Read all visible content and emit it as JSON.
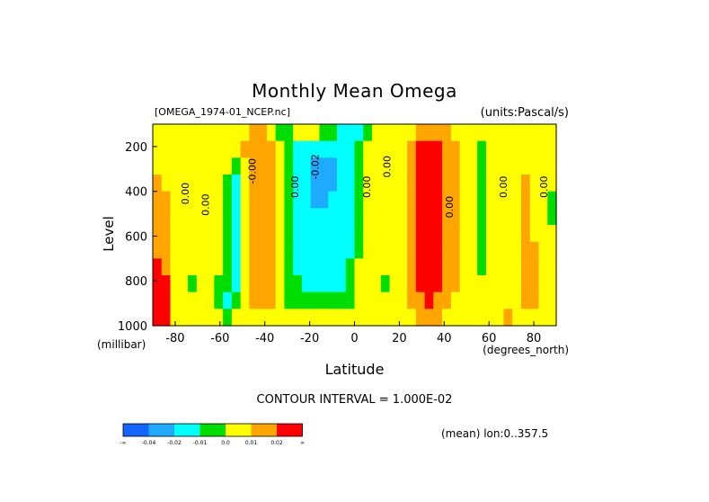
{
  "title": "Monthly Mean Omega",
  "dataset": "[OMEGA_1974-01_NCEP.nc]",
  "units": "(units:Pascal/s)",
  "footer": {
    "contour_interval": "CONTOUR INTERVAL = 1.000E-02",
    "mean_note": "(mean) lon:0..357.5"
  },
  "legend": {
    "colors": [
      "#1464ff",
      "#1eaaff",
      "#00ffff",
      "#00dd00",
      "#ffff00",
      "#ffa500",
      "#ff0000"
    ],
    "labels": [
      "-∞",
      "-0.04",
      "-0.02",
      "-0.01",
      "0.0",
      "0.01",
      "0.02",
      "∞"
    ]
  },
  "chart_data": {
    "type": "heatmap",
    "title": "Monthly Mean Omega",
    "xlabel": "Latitude",
    "ylabel": "Level",
    "x_units": "(degrees_north)",
    "y_units": "(millibar)",
    "xlim": [
      -90,
      90
    ],
    "ylim": [
      1000,
      100
    ],
    "x_ticks": [
      -80,
      -60,
      -40,
      -20,
      0,
      20,
      40,
      60,
      80
    ],
    "y_ticks": [
      200,
      400,
      600,
      800,
      1000
    ],
    "contour_interval": 0.01,
    "contour_labels": [
      {
        "text": "0.00",
        "lat": -74,
        "lev": 410
      },
      {
        "text": "0.00",
        "lat": -65,
        "lev": 460
      },
      {
        "text": "-0.00",
        "lat": -44,
        "lev": 310
      },
      {
        "text": "0.00",
        "lat": -25,
        "lev": 380
      },
      {
        "text": "-0.02",
        "lat": -16,
        "lev": 290
      },
      {
        "text": "0.00",
        "lat": 7,
        "lev": 380
      },
      {
        "text": "0.00",
        "lat": 16,
        "lev": 290
      },
      {
        "text": "0.00",
        "lat": 44,
        "lev": 470
      },
      {
        "text": "0.00",
        "lat": 68,
        "lev": 380
      },
      {
        "text": "0.00",
        "lat": 86,
        "lev": 380
      }
    ],
    "field": [
      [
        0.005,
        0.005,
        0.005,
        0,
        0.005,
        0.005,
        0,
        0,
        0.005,
        0.005,
        0.005,
        0.015,
        0.015,
        0,
        -0.005,
        -0.005,
        0,
        0,
        0,
        -0.005,
        -0.005,
        -0.015,
        -0.015,
        -0.015,
        -0.005,
        0,
        0,
        0,
        0,
        0.005,
        0.015,
        0.015,
        0.015,
        0.015,
        0.005,
        0,
        0,
        0,
        0,
        0,
        0.005,
        0.005,
        0.005,
        0.005,
        0.005,
        0.005
      ],
      [
        0.005,
        0.005,
        0.005,
        0.005,
        0.005,
        0,
        0,
        0.005,
        0.005,
        0.005,
        0.015,
        0.015,
        0.015,
        0.015,
        0,
        -0.005,
        -0.015,
        -0.015,
        -0.015,
        -0.015,
        -0.015,
        -0.015,
        -0.015,
        -0.005,
        0,
        0,
        0,
        0,
        0,
        0.015,
        0.025,
        0.025,
        0.025,
        0.015,
        0.015,
        0,
        0,
        -0.005,
        0,
        0,
        0,
        0.005,
        0.005,
        0.005,
        0.005,
        0.005
      ],
      [
        0.005,
        0.005,
        0.005,
        0.005,
        0.005,
        0,
        0,
        0.005,
        0,
        -0.005,
        0,
        0.015,
        0.015,
        0.015,
        0,
        -0.005,
        -0.015,
        -0.015,
        -0.025,
        -0.025,
        -0.025,
        -0.015,
        -0.015,
        -0.005,
        0,
        0,
        0,
        0,
        0,
        0.015,
        0.025,
        0.025,
        0.025,
        0.015,
        0.015,
        0,
        0,
        -0.005,
        0,
        0,
        0,
        0.005,
        0.005,
        0.005,
        0.005,
        0.005
      ],
      [
        0.015,
        0.005,
        0.005,
        0.005,
        0.005,
        0,
        0,
        0,
        -0.005,
        -0.015,
        0,
        0.015,
        0.015,
        0.015,
        0,
        -0.005,
        -0.015,
        -0.015,
        -0.025,
        -0.025,
        -0.025,
        -0.015,
        -0.015,
        -0.005,
        0,
        0,
        0,
        0,
        0,
        0.015,
        0.025,
        0.025,
        0.025,
        0.015,
        0.015,
        0,
        0,
        -0.005,
        0,
        0.005,
        0,
        0.005,
        0.015,
        0.005,
        0.005,
        0.005
      ],
      [
        0.015,
        0.015,
        0.005,
        0.005,
        0.005,
        0,
        0,
        0,
        -0.005,
        -0.015,
        0,
        0.015,
        0.015,
        0.015,
        0,
        -0.005,
        -0.015,
        -0.015,
        -0.025,
        -0.025,
        -0.015,
        -0.015,
        -0.015,
        -0.005,
        0,
        0,
        0,
        0,
        0,
        0.015,
        0.025,
        0.025,
        0.025,
        0.015,
        0.015,
        0,
        0,
        -0.005,
        0,
        0.005,
        0,
        0.005,
        0.015,
        0.005,
        0.005,
        -0.005
      ],
      [
        0.015,
        0.015,
        0.005,
        0.005,
        0,
        0,
        0,
        0,
        -0.005,
        -0.015,
        0,
        0.015,
        0.015,
        0.015,
        0,
        -0.005,
        -0.015,
        -0.015,
        -0.015,
        -0.015,
        -0.015,
        -0.015,
        -0.015,
        -0.005,
        0,
        0,
        0,
        0,
        0,
        0.015,
        0.025,
        0.025,
        0.025,
        0.015,
        0.015,
        0,
        0,
        -0.005,
        0,
        0.005,
        0,
        0.005,
        0.015,
        0.005,
        0.005,
        -0.005
      ],
      [
        0.015,
        0.015,
        0.005,
        0,
        0,
        0,
        0,
        0,
        -0.005,
        -0.015,
        0,
        0.015,
        0.015,
        0.015,
        0,
        -0.005,
        -0.015,
        -0.015,
        -0.015,
        -0.015,
        -0.015,
        -0.015,
        -0.015,
        -0.005,
        0,
        0,
        0,
        0,
        0,
        0.015,
        0.025,
        0.025,
        0.025,
        0.015,
        0.015,
        0,
        0,
        -0.005,
        0,
        0.005,
        0,
        0.005,
        0.015,
        0.005,
        0.005,
        0
      ],
      [
        0.015,
        0.015,
        0.005,
        0,
        0,
        0,
        0,
        0,
        -0.005,
        -0.015,
        0,
        0.015,
        0.015,
        0.015,
        0,
        -0.005,
        -0.015,
        -0.015,
        -0.015,
        -0.015,
        -0.015,
        -0.015,
        -0.015,
        -0.005,
        0,
        0,
        0,
        0,
        0,
        0.015,
        0.025,
        0.025,
        0.025,
        0.015,
        0.015,
        0,
        0,
        -0.005,
        0,
        0.005,
        0,
        0.005,
        0.015,
        0.015,
        0.005,
        0
      ],
      [
        0.025,
        0.015,
        0.005,
        0,
        0,
        0,
        0,
        0,
        -0.005,
        -0.015,
        0,
        0.015,
        0.015,
        0.015,
        0,
        -0.005,
        -0.015,
        -0.015,
        -0.015,
        -0.015,
        -0.015,
        -0.015,
        -0.005,
        0,
        0,
        0,
        0,
        0,
        0,
        0.015,
        0.025,
        0.025,
        0.025,
        0.015,
        0.015,
        0,
        0,
        -0.005,
        0,
        0.005,
        0,
        0.005,
        0.015,
        0.015,
        0.005,
        0
      ],
      [
        0.025,
        0.025,
        0.005,
        0,
        -0.005,
        0,
        0,
        -0.005,
        -0.005,
        -0.015,
        0,
        0.015,
        0.015,
        0.015,
        0,
        -0.005,
        -0.005,
        -0.015,
        -0.015,
        -0.015,
        -0.015,
        -0.015,
        -0.005,
        0,
        0,
        0,
        -0.005,
        0,
        0,
        0.015,
        0.025,
        0.025,
        0.025,
        0.015,
        0.015,
        0,
        0,
        0,
        0,
        0.005,
        0,
        0.005,
        0.015,
        0.015,
        0.005,
        0
      ],
      [
        0.035,
        0.025,
        0.005,
        0,
        0,
        0,
        0,
        -0.005,
        -0.015,
        -0.005,
        0,
        0.015,
        0.015,
        0.015,
        0,
        -0.005,
        -0.005,
        -0.005,
        -0.005,
        -0.005,
        -0.005,
        -0.005,
        -0.005,
        0,
        0,
        0,
        0,
        0,
        0,
        0.015,
        0.015,
        0.025,
        0.015,
        0.015,
        0,
        0,
        0,
        0,
        0,
        0.005,
        0,
        0.005,
        0.015,
        0.015,
        0.005,
        0
      ],
      [
        0.045,
        0.035,
        0.005,
        0,
        0,
        0,
        0,
        0,
        -0.005,
        0,
        0.005,
        0.005,
        0.005,
        0.005,
        0,
        0,
        0,
        0,
        0,
        0,
        0,
        0,
        0,
        0,
        0,
        0,
        0,
        0,
        0,
        0.005,
        0.015,
        0.015,
        0.015,
        0.005,
        0,
        0,
        0,
        0,
        0,
        0.005,
        0.015,
        0.005,
        0.005,
        0.005,
        0.005,
        0
      ]
    ]
  }
}
